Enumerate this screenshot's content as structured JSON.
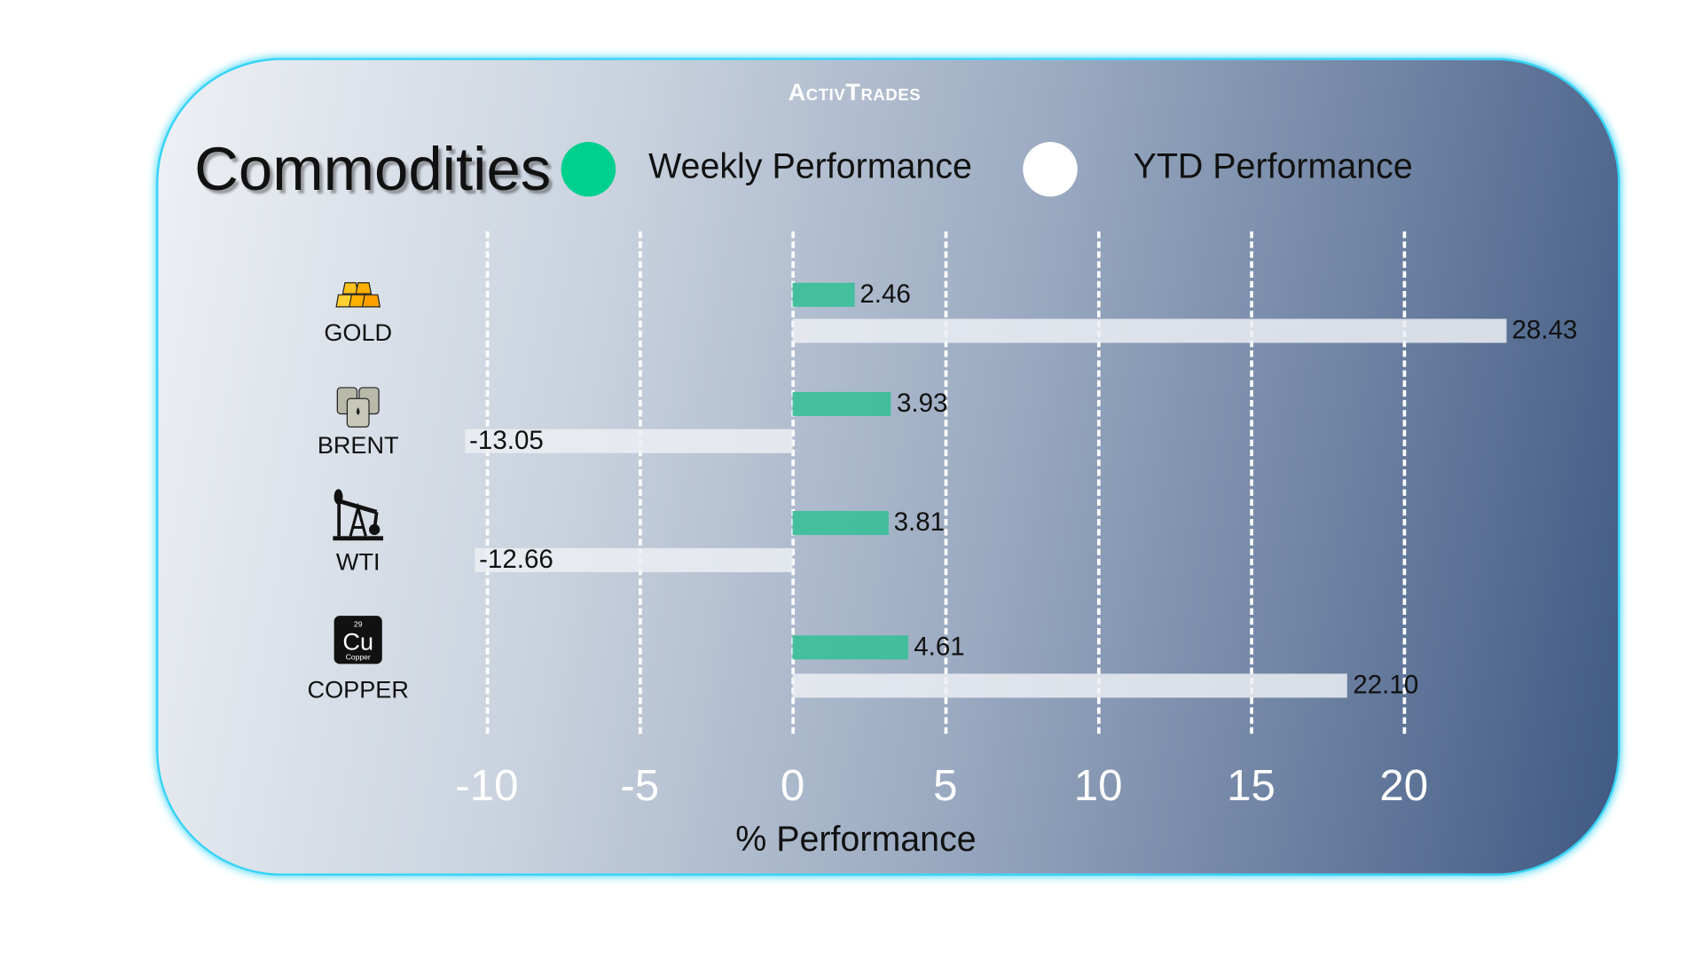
{
  "logo": "ActivTrades",
  "title": "Commodities",
  "legend": [
    {
      "label": "Weekly Performance",
      "color": "#00d08e"
    },
    {
      "label": "YTD Performance",
      "color": "#ffffff"
    }
  ],
  "chart_data": {
    "type": "bar",
    "orientation": "horizontal",
    "categories": [
      "GOLD",
      "BRENT",
      "WTI",
      "COPPER"
    ],
    "category_icons": [
      "gold-bars-icon",
      "oil-barrels-icon",
      "oil-pumpjack-icon",
      "copper-element-icon"
    ],
    "series": [
      {
        "name": "Weekly Performance",
        "values": [
          2.46,
          3.93,
          3.81,
          4.61
        ],
        "labels": [
          "2.46",
          "3.93",
          "3.81",
          "4.61"
        ],
        "color": "#3dbf9a"
      },
      {
        "name": "YTD Performance",
        "values": [
          28.43,
          -13.05,
          -12.66,
          22.1
        ],
        "labels": [
          "28.43",
          "-13.05",
          "-12.66",
          "22.10"
        ],
        "color": "#eceff3"
      }
    ],
    "xlabel": "% Performance",
    "xticks": [
      "-10",
      "-5",
      "0",
      "5",
      "10",
      "15",
      "20"
    ],
    "xlim": [
      -10,
      20
    ],
    "grid": true,
    "legend_position": "top"
  }
}
